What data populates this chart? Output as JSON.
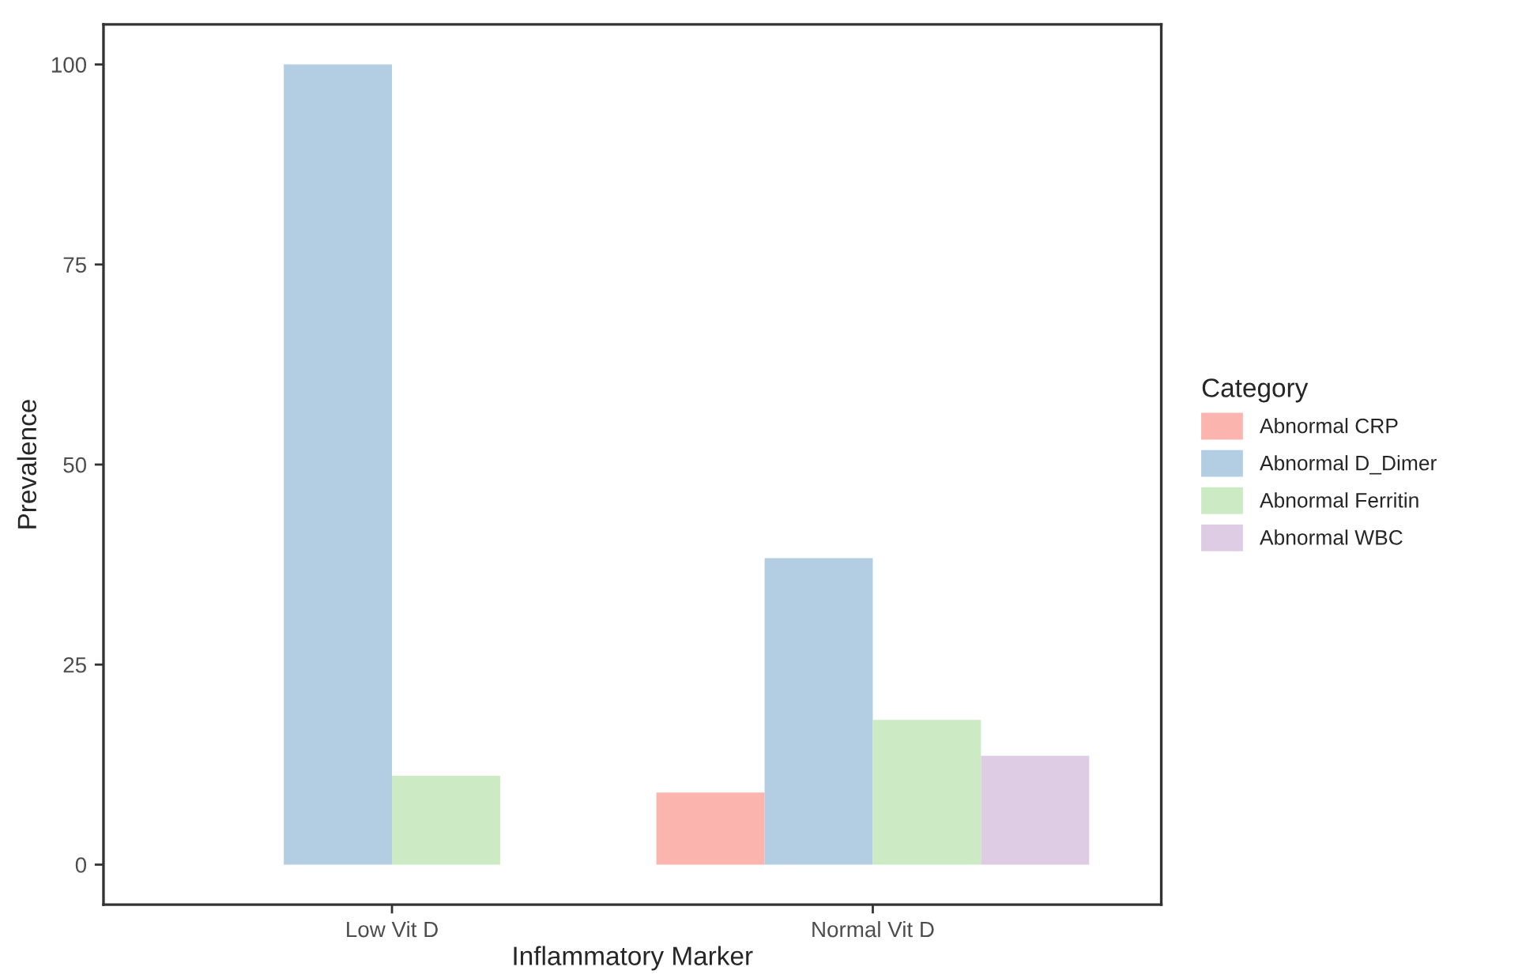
{
  "chart_data": {
    "type": "bar",
    "xlabel": "Inflammatory Marker",
    "ylabel": "Prevalence",
    "legend_title": "Category",
    "categories": [
      "Low Vit D",
      "Normal Vit D"
    ],
    "series": [
      {
        "name": "Abnormal CRP",
        "color": "#fbb4ae",
        "values": [
          0,
          9.0
        ]
      },
      {
        "name": "Abnormal D_Dimer",
        "color": "#b3cde3",
        "values": [
          100,
          38.3
        ]
      },
      {
        "name": "Abnormal Ferritin",
        "color": "#ccebc5",
        "values": [
          11.1,
          18.1
        ]
      },
      {
        "name": "Abnormal WBC",
        "color": "#decbe4",
        "values": [
          0,
          13.6
        ]
      }
    ],
    "ylim": [
      -5,
      105
    ],
    "yticks": [
      0,
      25,
      50,
      75,
      100
    ],
    "grid": false,
    "legend": "right"
  }
}
